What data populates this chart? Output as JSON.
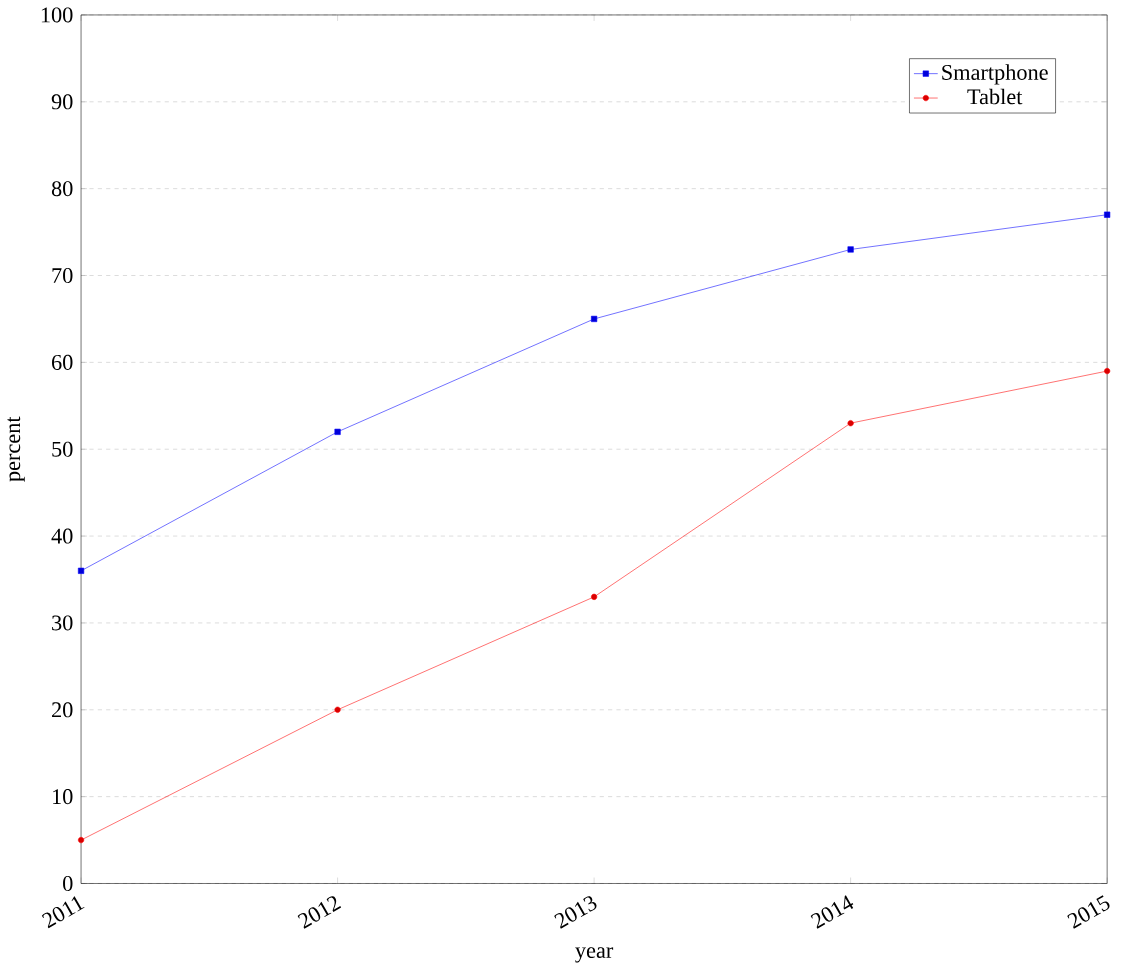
{
  "chart_data": {
    "type": "line",
    "xlabel": "year",
    "ylabel": "percent",
    "x": [
      2011,
      2012,
      2013,
      2014,
      2015
    ],
    "series": [
      {
        "name": "Smartphone",
        "color": "#0000ff",
        "marker": "square",
        "values": [
          36,
          52,
          65,
          73,
          77
        ]
      },
      {
        "name": "Tablet",
        "color": "#ff0000",
        "marker": "circle",
        "values": [
          5,
          20,
          33,
          53,
          59
        ]
      }
    ],
    "xlim": [
      2011,
      2015
    ],
    "xticks": [
      2011,
      2012,
      2013,
      2014,
      2015
    ],
    "ylim": [
      0,
      100
    ],
    "yticks": [
      0,
      10,
      20,
      30,
      40,
      50,
      60,
      70,
      80,
      90,
      100
    ],
    "grid": "y",
    "legend": "top right",
    "line_style": "solid"
  }
}
